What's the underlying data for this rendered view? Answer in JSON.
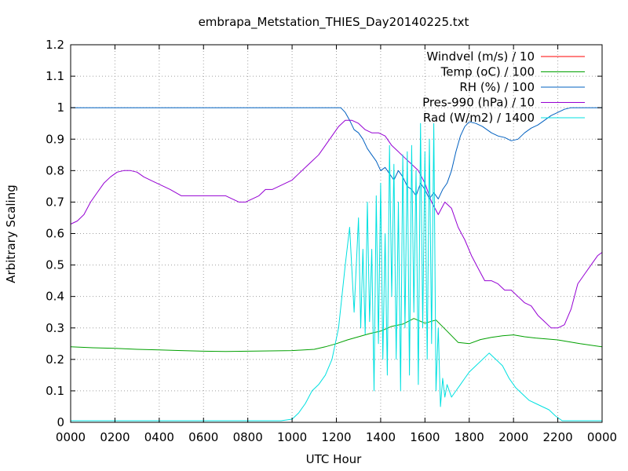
{
  "chart_data": {
    "type": "line",
    "title": "embrapa_Metstation_THIES_Day20140225.txt",
    "xlabel": "UTC Hour",
    "ylabel": "Arbitrary Scaling",
    "xlim": [
      0,
      24
    ],
    "ylim": [
      0,
      1.2
    ],
    "x_ticks": [
      {
        "value": 0,
        "label": "0000"
      },
      {
        "value": 2,
        "label": "0200"
      },
      {
        "value": 4,
        "label": "0400"
      },
      {
        "value": 6,
        "label": "0600"
      },
      {
        "value": 8,
        "label": "0800"
      },
      {
        "value": 10,
        "label": "1000"
      },
      {
        "value": 12,
        "label": "1200"
      },
      {
        "value": 14,
        "label": "1400"
      },
      {
        "value": 16,
        "label": "1600"
      },
      {
        "value": 18,
        "label": "1800"
      },
      {
        "value": 20,
        "label": "2000"
      },
      {
        "value": 22,
        "label": "2200"
      },
      {
        "value": 24,
        "label": "0000"
      }
    ],
    "y_ticks": [
      {
        "value": 0,
        "label": "0"
      },
      {
        "value": 0.1,
        "label": "0.1"
      },
      {
        "value": 0.2,
        "label": "0.2"
      },
      {
        "value": 0.3,
        "label": "0.3"
      },
      {
        "value": 0.4,
        "label": "0.4"
      },
      {
        "value": 0.5,
        "label": "0.5"
      },
      {
        "value": 0.6,
        "label": "0.6"
      },
      {
        "value": 0.7,
        "label": "0.7"
      },
      {
        "value": 0.8,
        "label": "0.8"
      },
      {
        "value": 0.9,
        "label": "0.9"
      },
      {
        "value": 1.0,
        "label": "1"
      },
      {
        "value": 1.1,
        "label": "1.1"
      },
      {
        "value": 1.2,
        "label": "1.2"
      }
    ],
    "grid": true,
    "legend_position": "top-right",
    "series": [
      {
        "name": "Windvel (m/s) / 10",
        "color": "#ff0000",
        "x": [],
        "y": []
      },
      {
        "name": "Temp (oC) / 100",
        "color": "#00a000",
        "x": [
          0,
          1,
          2,
          3,
          4,
          5,
          6,
          7,
          8,
          9,
          10,
          11,
          11.5,
          12,
          12.5,
          13,
          13.5,
          14,
          14.5,
          15,
          15.5,
          16,
          16.5,
          17,
          17.5,
          18,
          18.5,
          19,
          19.5,
          20,
          20.5,
          21,
          22,
          23,
          24
        ],
        "y": [
          0.24,
          0.237,
          0.235,
          0.232,
          0.23,
          0.228,
          0.226,
          0.225,
          0.226,
          0.227,
          0.228,
          0.232,
          0.24,
          0.25,
          0.262,
          0.272,
          0.282,
          0.29,
          0.305,
          0.312,
          0.33,
          0.315,
          0.325,
          0.29,
          0.254,
          0.25,
          0.263,
          0.27,
          0.275,
          0.278,
          0.272,
          0.268,
          0.262,
          0.25,
          0.24
        ]
      },
      {
        "name": "RH (%) / 100",
        "color": "#0060c0",
        "x": [
          0,
          12.2,
          12.4,
          12.6,
          12.8,
          13,
          13.2,
          13.4,
          13.6,
          13.8,
          14,
          14.2,
          14.4,
          14.6,
          14.8,
          15,
          15.2,
          15.4,
          15.6,
          15.8,
          16,
          16.2,
          16.4,
          16.6,
          16.8,
          17,
          17.2,
          17.4,
          17.6,
          17.8,
          18,
          18.3,
          18.6,
          19,
          19.3,
          19.6,
          19.9,
          20.2,
          20.5,
          20.8,
          21.1,
          21.4,
          21.7,
          22,
          22.3,
          22.6,
          23,
          24
        ],
        "y": [
          1.0,
          1.0,
          0.985,
          0.96,
          0.93,
          0.92,
          0.9,
          0.87,
          0.85,
          0.83,
          0.8,
          0.81,
          0.79,
          0.77,
          0.8,
          0.78,
          0.75,
          0.74,
          0.72,
          0.76,
          0.74,
          0.71,
          0.73,
          0.71,
          0.74,
          0.76,
          0.8,
          0.86,
          0.91,
          0.94,
          0.955,
          0.95,
          0.94,
          0.92,
          0.91,
          0.905,
          0.895,
          0.9,
          0.92,
          0.935,
          0.945,
          0.96,
          0.975,
          0.985,
          0.995,
          1.0,
          1.0,
          1.0
        ]
      },
      {
        "name": "Pres-990 (hPa) / 10",
        "color": "#9500d3",
        "x": [
          0,
          0.3,
          0.6,
          0.9,
          1.2,
          1.5,
          1.8,
          2.1,
          2.4,
          2.7,
          3.0,
          3.3,
          3.6,
          3.9,
          4.2,
          4.5,
          5.0,
          5.5,
          6.0,
          6.5,
          7.0,
          7.3,
          7.6,
          7.9,
          8.2,
          8.5,
          8.8,
          9.1,
          9.4,
          9.7,
          10.0,
          10.3,
          10.6,
          10.9,
          11.2,
          11.5,
          11.8,
          12.1,
          12.4,
          12.7,
          13.0,
          13.3,
          13.6,
          13.9,
          14.2,
          14.5,
          14.8,
          15.1,
          15.4,
          15.7,
          16.0,
          16.3,
          16.6,
          16.9,
          17.2,
          17.5,
          17.8,
          18.1,
          18.4,
          18.7,
          19.0,
          19.3,
          19.6,
          19.9,
          20.2,
          20.5,
          20.8,
          21.1,
          21.4,
          21.7,
          22.0,
          22.3,
          22.6,
          22.9,
          23.2,
          23.5,
          23.8,
          24
        ],
        "y": [
          0.63,
          0.64,
          0.66,
          0.7,
          0.73,
          0.76,
          0.78,
          0.795,
          0.8,
          0.8,
          0.795,
          0.78,
          0.77,
          0.76,
          0.75,
          0.74,
          0.72,
          0.72,
          0.72,
          0.72,
          0.72,
          0.71,
          0.7,
          0.7,
          0.71,
          0.72,
          0.74,
          0.74,
          0.75,
          0.76,
          0.77,
          0.79,
          0.81,
          0.83,
          0.85,
          0.88,
          0.91,
          0.94,
          0.96,
          0.96,
          0.95,
          0.93,
          0.92,
          0.92,
          0.91,
          0.88,
          0.86,
          0.84,
          0.82,
          0.8,
          0.76,
          0.7,
          0.66,
          0.7,
          0.68,
          0.62,
          0.58,
          0.53,
          0.49,
          0.45,
          0.45,
          0.44,
          0.42,
          0.42,
          0.4,
          0.38,
          0.37,
          0.34,
          0.32,
          0.3,
          0.3,
          0.31,
          0.36,
          0.44,
          0.47,
          0.5,
          0.53,
          0.54
        ]
      },
      {
        "name": "Rad (W/m2) / 1400",
        "color": "#00e0e0",
        "x": [
          0,
          9.0,
          9.5,
          10.0,
          10.3,
          10.6,
          10.9,
          11.2,
          11.5,
          11.8,
          12.1,
          12.4,
          12.6,
          12.8,
          13.0,
          13.1,
          13.2,
          13.3,
          13.4,
          13.5,
          13.6,
          13.7,
          13.8,
          13.9,
          14.0,
          14.1,
          14.2,
          14.3,
          14.4,
          14.5,
          14.6,
          14.7,
          14.8,
          14.9,
          15.0,
          15.1,
          15.2,
          15.3,
          15.4,
          15.5,
          15.6,
          15.7,
          15.8,
          15.9,
          16.0,
          16.1,
          16.2,
          16.3,
          16.4,
          16.5,
          16.6,
          16.7,
          16.8,
          16.9,
          17.0,
          17.2,
          17.4,
          17.6,
          17.8,
          18.0,
          18.3,
          18.6,
          18.9,
          19.2,
          19.5,
          19.8,
          20.1,
          20.4,
          20.7,
          21.0,
          21.3,
          21.6,
          21.9,
          22.2,
          22.5,
          23.0,
          24
        ],
        "y": [
          0.005,
          0.005,
          0.005,
          0.01,
          0.03,
          0.06,
          0.1,
          0.12,
          0.15,
          0.2,
          0.3,
          0.5,
          0.62,
          0.35,
          0.65,
          0.3,
          0.55,
          0.28,
          0.7,
          0.32,
          0.55,
          0.1,
          0.72,
          0.25,
          0.76,
          0.2,
          0.6,
          0.15,
          0.88,
          0.4,
          0.82,
          0.2,
          0.7,
          0.1,
          0.85,
          0.3,
          0.86,
          0.15,
          0.88,
          0.35,
          0.8,
          0.12,
          0.95,
          0.3,
          0.86,
          0.2,
          0.9,
          0.25,
          0.95,
          0.1,
          0.3,
          0.05,
          0.14,
          0.08,
          0.12,
          0.08,
          0.1,
          0.12,
          0.14,
          0.16,
          0.18,
          0.2,
          0.22,
          0.2,
          0.18,
          0.14,
          0.11,
          0.09,
          0.07,
          0.06,
          0.05,
          0.04,
          0.02,
          0.005,
          0.005,
          0.005,
          0.005
        ]
      }
    ]
  }
}
